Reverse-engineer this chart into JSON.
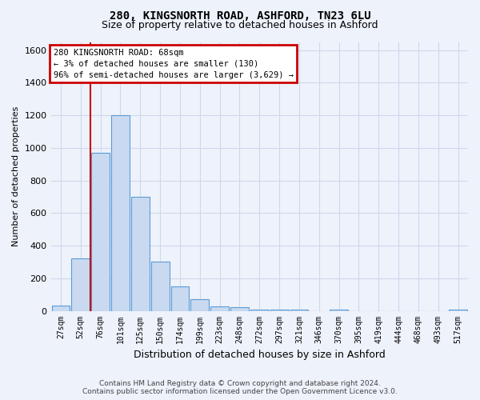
{
  "title_line1": "280, KINGSNORTH ROAD, ASHFORD, TN23 6LU",
  "title_line2": "Size of property relative to detached houses in Ashford",
  "xlabel": "Distribution of detached houses by size in Ashford",
  "ylabel": "Number of detached properties",
  "footer_line1": "Contains HM Land Registry data © Crown copyright and database right 2024.",
  "footer_line2": "Contains public sector information licensed under the Open Government Licence v3.0.",
  "categories": [
    "27sqm",
    "52sqm",
    "76sqm",
    "101sqm",
    "125sqm",
    "150sqm",
    "174sqm",
    "199sqm",
    "223sqm",
    "248sqm",
    "272sqm",
    "297sqm",
    "321sqm",
    "346sqm",
    "370sqm",
    "395sqm",
    "419sqm",
    "444sqm",
    "468sqm",
    "493sqm",
    "517sqm"
  ],
  "values": [
    30,
    320,
    970,
    1200,
    700,
    300,
    150,
    70,
    28,
    20,
    10,
    10,
    10,
    0,
    10,
    0,
    0,
    0,
    0,
    0,
    10
  ],
  "bar_color": "#c9daf0",
  "bar_edge_color": "#5b9bd5",
  "ylim": [
    0,
    1650
  ],
  "yticks": [
    0,
    200,
    400,
    600,
    800,
    1000,
    1200,
    1400,
    1600
  ],
  "annotation_text": "280 KINGSNORTH ROAD: 68sqm\n← 3% of detached houses are smaller (130)\n96% of semi-detached houses are larger (3,629) →",
  "annotation_box_color": "white",
  "annotation_box_edge": "#cc0000",
  "vline_x": 1.5,
  "background_color": "#eef2fb",
  "grid_color": "#d0d8ec",
  "title_fontsize": 10,
  "subtitle_fontsize": 9,
  "ylabel_fontsize": 8,
  "xlabel_fontsize": 9,
  "tick_fontsize": 7,
  "footer_fontsize": 6.5
}
